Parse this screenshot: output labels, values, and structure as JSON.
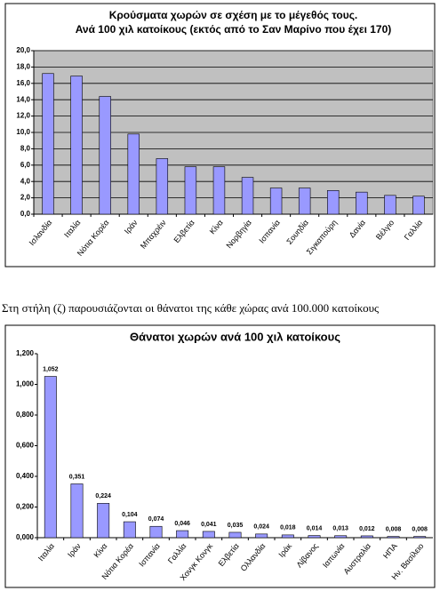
{
  "chart_data": [
    {
      "type": "bar",
      "title": "Κρούσματα χωρών σε σχέση με το μέγεθός τους.",
      "subtitle": "Ανά 100 χιλ κατοίκους (εκτός από το Σαν Μαρίνο που έχει 170)",
      "categories": [
        "Ισλανδία",
        "Ιταλία",
        "Νότια Κορέα",
        "Ιράν",
        "Μπαχρέιν",
        "Ελβετία",
        "Κίνα",
        "Νορβηγία",
        "Ισπανία",
        "Σουηδία",
        "Σιγκαπούρη",
        "Δανία",
        "Βέλγιο",
        "Γαλλία"
      ],
      "values": [
        17.2,
        16.9,
        14.4,
        9.8,
        6.8,
        5.8,
        5.8,
        4.5,
        3.2,
        3.2,
        2.9,
        2.7,
        2.3,
        2.2
      ],
      "color": "#9999ff",
      "plot_color": "#c0c0c0",
      "grid": true,
      "ylim": [
        0,
        20
      ],
      "yticks": [
        {
          "value": 0,
          "label": "0,0"
        },
        {
          "value": 2,
          "label": "2,0"
        },
        {
          "value": 4,
          "label": "4,0"
        },
        {
          "value": 6,
          "label": "6,0"
        },
        {
          "value": 8,
          "label": "8,0"
        },
        {
          "value": 10,
          "label": "10,0"
        },
        {
          "value": 12,
          "label": "12,0"
        },
        {
          "value": 14,
          "label": "14,0"
        },
        {
          "value": 16,
          "label": "16,0"
        },
        {
          "value": 18,
          "label": "18,0"
        },
        {
          "value": 20,
          "label": "20,0"
        }
      ]
    },
    {
      "type": "bar",
      "title": "Θάνατοι χωρών ανά 100 χιλ κατοίκους",
      "categories": [
        "Ιταλία",
        "Ιράν",
        "Κίνα",
        "Νότια Κορέα",
        "Ισπανία",
        "Γαλλία",
        "Χονγκ Κονγκ",
        "Ελβετία",
        "Ολλανδία",
        "Ιράκ",
        "Λίβανος",
        "Ιαπωνία",
        "Αυστραλία",
        "ΗΠΑ",
        "Ην. Βασίλειο"
      ],
      "values": [
        1.052,
        0.351,
        0.224,
        0.104,
        0.074,
        0.046,
        0.041,
        0.035,
        0.024,
        0.018,
        0.014,
        0.013,
        0.012,
        0.008,
        0.008
      ],
      "value_labels": [
        "1,052",
        "0,351",
        "0,224",
        "0,104",
        "0,074",
        "0,046",
        "0,041",
        "0,035",
        "0,024",
        "0,018",
        "0,014",
        "0,013",
        "0,012",
        "0,008",
        "0,008"
      ],
      "color": "#9999ff",
      "plot_color": "#ffffff",
      "grid": false,
      "ylim": [
        0,
        1.2
      ],
      "yticks": [
        {
          "value": 0,
          "label": "0,000"
        },
        {
          "value": 0.2,
          "label": "0,200"
        },
        {
          "value": 0.4,
          "label": "0,400"
        },
        {
          "value": 0.6,
          "label": "0,600"
        },
        {
          "value": 0.8,
          "label": "0,800"
        },
        {
          "value": 1.0,
          "label": "1,000"
        },
        {
          "value": 1.2,
          "label": "1,200"
        }
      ]
    }
  ],
  "caption": "Στη στήλη (ζ) παρουσιάζονται οι θάνατοι της κάθε χώρας ανά 100.000 κατοίκους"
}
